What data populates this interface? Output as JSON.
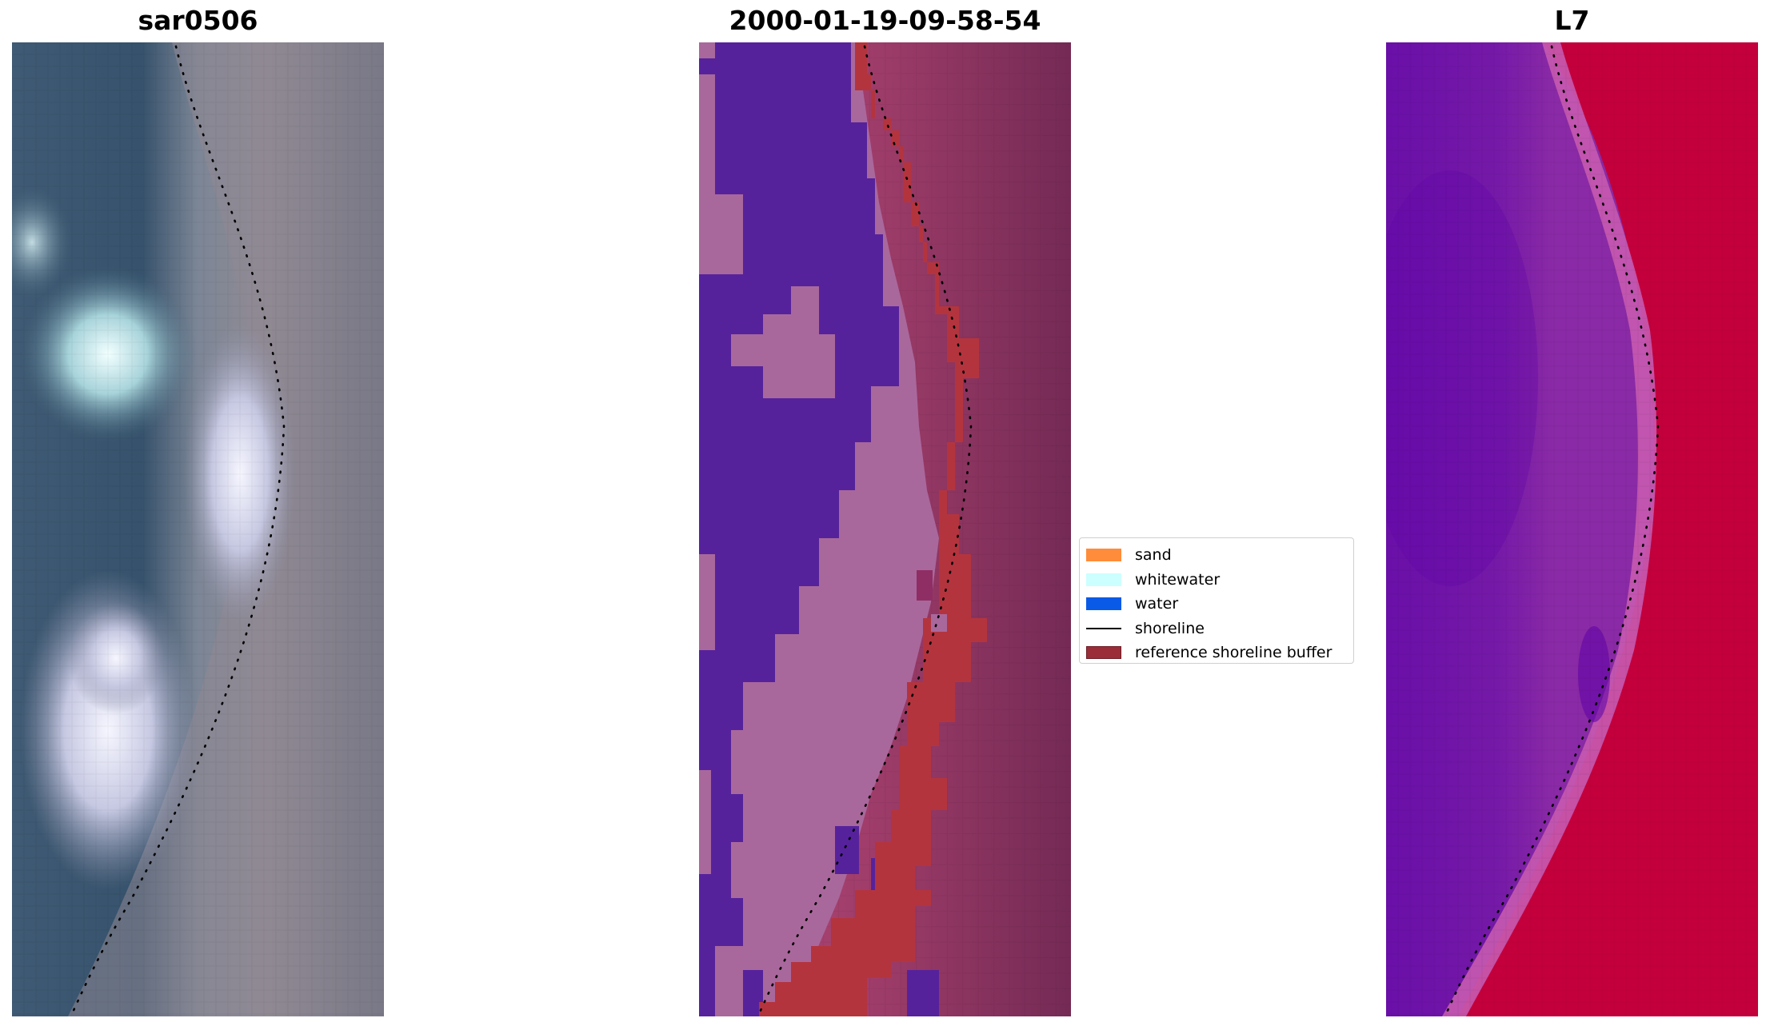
{
  "panels": [
    {
      "id": "rgb",
      "title": "sar0506"
    },
    {
      "id": "classified",
      "title": "2000-01-19-09-58-54"
    },
    {
      "id": "mndwi",
      "title": "L7"
    }
  ],
  "legend": {
    "items": [
      {
        "label": "sand",
        "color": "#ff8c3a",
        "kind": "patch"
      },
      {
        "label": "whitewater",
        "color": "#ccffff",
        "kind": "patch"
      },
      {
        "label": "water",
        "color": "#0a5ae8",
        "kind": "patch"
      },
      {
        "label": "shoreline",
        "color": "#000000",
        "kind": "line"
      },
      {
        "label": "reference shoreline buffer",
        "color": "#9b2d38",
        "kind": "patch"
      }
    ]
  }
}
